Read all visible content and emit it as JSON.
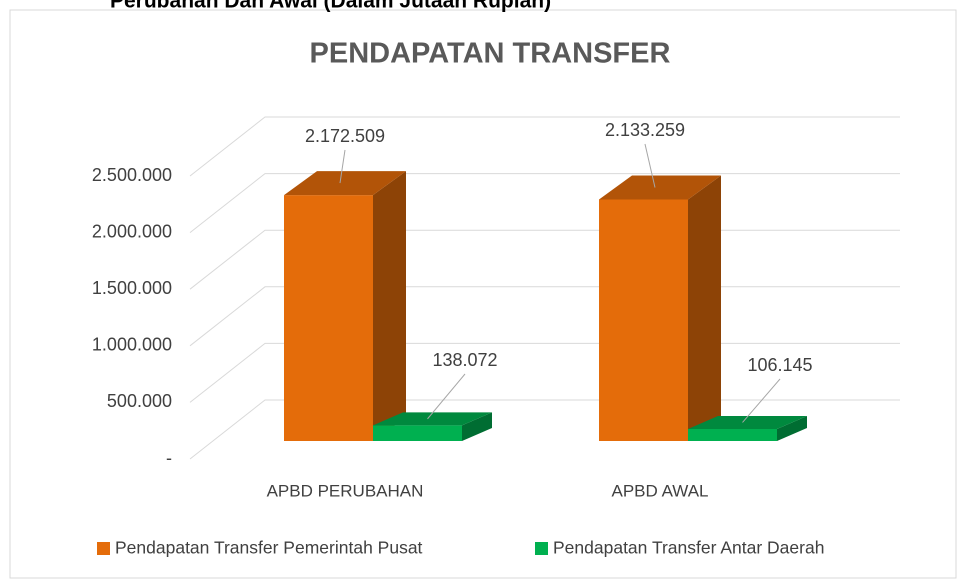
{
  "chart_data": {
    "type": "bar3d",
    "subtitle": "Perubahan Dan Awal (Dalam Jutaan Rupiah)",
    "title": "PENDAPATAN TRANSFER",
    "categories": [
      "APBD PERUBAHAN",
      "APBD AWAL"
    ],
    "series": [
      {
        "name": "Pendapatan Transfer Pemerintah Pusat",
        "color": "#e46c0a",
        "values": [
          2172509,
          2133259
        ],
        "value_labels": [
          "2.172.509",
          "2.133.259"
        ]
      },
      {
        "name": "Pendapatan Transfer Antar Daerah",
        "color": "#00b050",
        "values": [
          138072,
          106145
        ],
        "value_labels": [
          "138.072",
          "106.145"
        ]
      }
    ],
    "ylim": [
      0,
      2500000
    ],
    "yticks": [
      {
        "value": 0,
        "label": "-"
      },
      {
        "value": 500000,
        "label": "500.000"
      },
      {
        "value": 1000000,
        "label": "1.000.000"
      },
      {
        "value": 1500000,
        "label": "1.500.000"
      },
      {
        "value": 2000000,
        "label": "2.000.000"
      },
      {
        "value": 2500000,
        "label": "2.500.000"
      }
    ],
    "grid": true,
    "legend": "bottom"
  }
}
